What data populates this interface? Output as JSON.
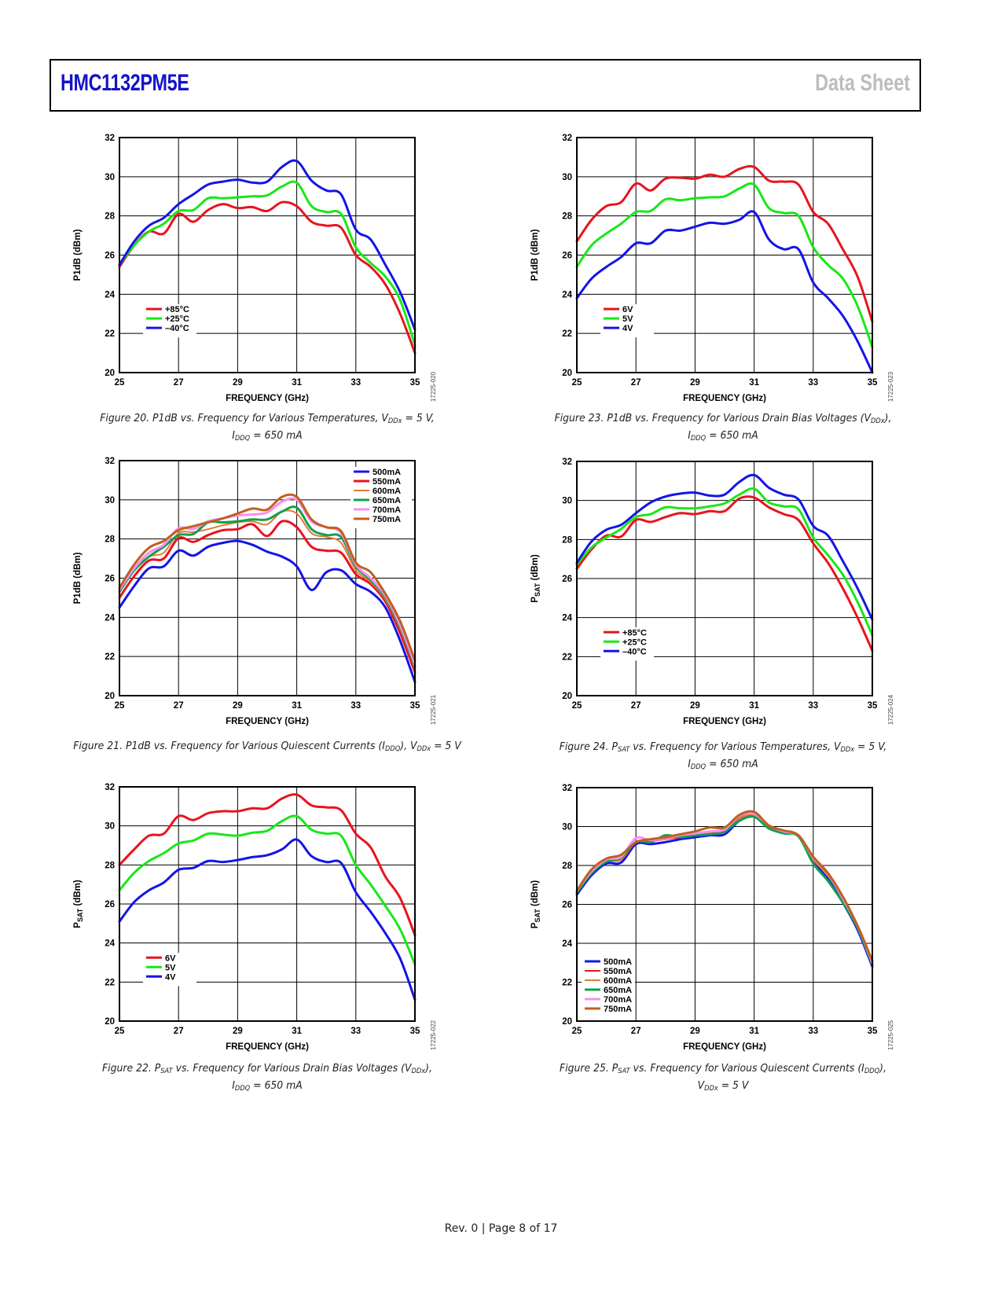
{
  "header": {
    "part_number": "HMC1132PM5E",
    "doc_type": "Data Sheet"
  },
  "footer": {
    "text": "Rev. 0 | Page 8 of 17"
  },
  "figures": [
    {
      "id": "fig20",
      "caption_html": "Figure 20. P1dB vs. Frequency for Various Temperatures, V<sub>DDx</sub> = 5 V,<br>I<sub>DDQ</sub> = 650 mA",
      "code": "17225-020"
    },
    {
      "id": "fig21",
      "caption_html": "Figure 21. P1dB vs. Frequency for Various Quiescent Currents (I<sub>DDQ</sub>), V<sub>DDx</sub> = 5 V",
      "code": "17225-021"
    },
    {
      "id": "fig22",
      "caption_html": "Figure 22. P<sub>SAT</sub> vs. Frequency for Various Drain Bias Voltages (V<sub>DDx</sub>),<br>I<sub>DDQ</sub> = 650 mA",
      "code": "17225-022"
    },
    {
      "id": "fig23",
      "caption_html": "Figure 23. P1dB vs. Frequency for Various Drain Bias Voltages (V<sub>DDx</sub>),<br>I<sub>DDQ</sub> = 650 mA",
      "code": "17225-023"
    },
    {
      "id": "fig24",
      "caption_html": "Figure 24. P<sub>SAT</sub> vs. Frequency for Various Temperatures, V<sub>DDx</sub> = 5 V,<br>I<sub>DDQ</sub> = 650 mA",
      "code": "17225-024"
    },
    {
      "id": "fig25",
      "caption_html": "Figure 25. P<sub>SAT</sub> vs. Frequency for Various Quiescent Currents (I<sub>DDQ</sub>),<br>V<sub>DDx</sub> = 5 V",
      "code": "17225-025"
    }
  ],
  "chart_data": [
    {
      "id": "fig20",
      "type": "line",
      "xlabel": "FREQUENCY (GHz)",
      "ylabel": "P1dB (dBm)",
      "ylabel_sub": "",
      "xlim": [
        25,
        35
      ],
      "ylim": [
        20,
        32
      ],
      "xticks": [
        25,
        27,
        29,
        31,
        33,
        35
      ],
      "yticks": [
        20,
        22,
        24,
        26,
        28,
        30,
        32
      ],
      "grid": true,
      "legend_position": "bottom-left",
      "x": [
        25,
        25.5,
        26,
        26.5,
        27,
        27.5,
        28,
        28.5,
        29,
        29.5,
        30,
        30.5,
        31,
        31.5,
        32,
        32.5,
        33,
        33.5,
        34,
        34.5,
        35
      ],
      "series": [
        {
          "name": "+85°C",
          "color": "#e8141e",
          "width": 3,
          "values": [
            25.4,
            26.5,
            27.2,
            27.1,
            28.1,
            27.7,
            28.3,
            28.6,
            28.4,
            28.45,
            28.25,
            28.7,
            28.5,
            27.7,
            27.5,
            27.4,
            26.0,
            25.4,
            24.5,
            23.0,
            21.0
          ]
        },
        {
          "name": "+25°C",
          "color": "#18e818",
          "width": 3,
          "values": [
            25.5,
            26.5,
            27.2,
            27.6,
            28.25,
            28.3,
            28.9,
            28.9,
            28.95,
            29.0,
            29.05,
            29.5,
            29.7,
            28.5,
            28.2,
            28.1,
            26.4,
            25.6,
            24.9,
            23.7,
            21.4
          ]
        },
        {
          "name": "–40°C",
          "color": "#1414e8",
          "width": 3,
          "values": [
            25.5,
            26.7,
            27.5,
            27.9,
            28.6,
            29.1,
            29.6,
            29.75,
            29.85,
            29.7,
            29.75,
            30.5,
            30.8,
            29.8,
            29.3,
            29.1,
            27.3,
            26.8,
            25.5,
            24.1,
            22.2
          ]
        }
      ]
    },
    {
      "id": "fig21",
      "type": "line",
      "xlabel": "FREQUENCY (GHz)",
      "ylabel": "P1dB (dBm)",
      "ylabel_sub": "",
      "xlim": [
        25,
        35
      ],
      "ylim": [
        20,
        32
      ],
      "xticks": [
        25,
        27,
        29,
        31,
        33,
        35
      ],
      "yticks": [
        20,
        22,
        24,
        26,
        28,
        30,
        32
      ],
      "grid": true,
      "legend_position": "top-right",
      "x": [
        25,
        25.5,
        26,
        26.5,
        27,
        27.5,
        28,
        28.5,
        29,
        29.5,
        30,
        30.5,
        31,
        31.5,
        32,
        32.5,
        33,
        33.5,
        34,
        34.5,
        35
      ],
      "series": [
        {
          "name": "500mA",
          "color": "#1414e8",
          "width": 3,
          "values": [
            24.5,
            25.6,
            26.5,
            26.6,
            27.4,
            27.15,
            27.6,
            27.8,
            27.9,
            27.7,
            27.35,
            27.1,
            26.6,
            25.4,
            26.3,
            26.4,
            25.7,
            25.3,
            24.5,
            22.8,
            20.7
          ]
        },
        {
          "name": "550mA",
          "color": "#e8141e",
          "width": 3,
          "values": [
            25.0,
            26.1,
            26.9,
            27.0,
            28.05,
            27.85,
            28.2,
            28.45,
            28.5,
            28.75,
            28.15,
            28.9,
            28.6,
            27.6,
            27.4,
            27.3,
            26.2,
            25.7,
            24.8,
            23.2,
            21.2
          ]
        },
        {
          "name": "600mA",
          "color": "#e87830",
          "width": 2,
          "values": [
            25.3,
            26.4,
            27.1,
            27.3,
            28.3,
            28.35,
            28.5,
            28.7,
            28.85,
            28.9,
            28.75,
            29.4,
            29.3,
            28.3,
            28.1,
            27.8,
            26.4,
            25.8,
            24.9,
            23.4,
            21.4
          ]
        },
        {
          "name": "650mA",
          "color": "#10a050",
          "width": 3,
          "values": [
            25.3,
            26.4,
            27.1,
            27.6,
            28.2,
            28.25,
            28.85,
            28.85,
            28.9,
            29.0,
            29.0,
            29.4,
            29.6,
            28.5,
            28.2,
            28.1,
            26.6,
            25.9,
            25.0,
            23.5,
            21.5
          ]
        },
        {
          "name": "700mA",
          "color": "#f890f0",
          "width": 3,
          "values": [
            25.4,
            26.5,
            27.3,
            27.7,
            28.55,
            28.5,
            28.9,
            29.05,
            29.2,
            29.25,
            29.35,
            29.9,
            30.0,
            28.9,
            28.6,
            28.3,
            26.7,
            26.0,
            25.1,
            23.6,
            21.6
          ]
        },
        {
          "name": "750mA",
          "color": "#c06020",
          "width": 3,
          "values": [
            25.5,
            26.7,
            27.55,
            27.9,
            28.45,
            28.65,
            28.85,
            29.05,
            29.3,
            29.55,
            29.5,
            30.15,
            30.15,
            29.0,
            28.6,
            28.4,
            26.8,
            26.3,
            25.2,
            23.8,
            21.8
          ]
        }
      ]
    },
    {
      "id": "fig22",
      "type": "line",
      "xlabel": "FREQUENCY (GHz)",
      "ylabel": "P",
      "ylabel_sub": "SAT",
      "xlim": [
        25,
        35
      ],
      "ylim": [
        20,
        32
      ],
      "xticks": [
        25,
        27,
        29,
        31,
        33,
        35
      ],
      "yticks": [
        20,
        22,
        24,
        26,
        28,
        30,
        32
      ],
      "grid": true,
      "legend_position": "bottom-left",
      "x": [
        25,
        25.5,
        26,
        26.5,
        27,
        27.5,
        28,
        28.5,
        29,
        29.5,
        30,
        30.5,
        31,
        31.5,
        32,
        32.5,
        33,
        33.5,
        34,
        34.5,
        35
      ],
      "series": [
        {
          "name": "6V",
          "color": "#e8141e",
          "width": 3,
          "values": [
            28.0,
            28.8,
            29.5,
            29.6,
            30.5,
            30.3,
            30.65,
            30.75,
            30.75,
            30.9,
            30.9,
            31.4,
            31.6,
            31.05,
            30.95,
            30.8,
            29.6,
            28.9,
            27.4,
            26.3,
            24.4
          ]
        },
        {
          "name": "5V",
          "color": "#18e818",
          "width": 3,
          "values": [
            26.7,
            27.6,
            28.2,
            28.6,
            29.1,
            29.25,
            29.6,
            29.55,
            29.5,
            29.65,
            29.75,
            30.25,
            30.5,
            29.8,
            29.6,
            29.5,
            28.0,
            27.0,
            25.9,
            24.7,
            22.9
          ]
        },
        {
          "name": "4V",
          "color": "#1414e8",
          "width": 3,
          "values": [
            25.1,
            26.1,
            26.7,
            27.1,
            27.75,
            27.85,
            28.2,
            28.15,
            28.25,
            28.4,
            28.5,
            28.8,
            29.3,
            28.45,
            28.15,
            28.1,
            26.6,
            25.6,
            24.5,
            23.2,
            21.1
          ]
        }
      ]
    },
    {
      "id": "fig23",
      "type": "line",
      "xlabel": "FREQUENCY (GHz)",
      "ylabel": "P1dB (dBm)",
      "ylabel_sub": "",
      "xlim": [
        25,
        35
      ],
      "ylim": [
        20,
        32
      ],
      "xticks": [
        25,
        27,
        29,
        31,
        33,
        35
      ],
      "yticks": [
        20,
        22,
        24,
        26,
        28,
        30,
        32
      ],
      "grid": true,
      "legend_position": "bottom-left",
      "x": [
        25,
        25.5,
        26,
        26.5,
        27,
        27.5,
        28,
        28.5,
        29,
        29.5,
        30,
        30.5,
        31,
        31.5,
        32,
        32.5,
        33,
        33.5,
        34,
        34.5,
        35
      ],
      "series": [
        {
          "name": "6V",
          "color": "#e8141e",
          "width": 3,
          "values": [
            26.7,
            27.8,
            28.5,
            28.7,
            29.65,
            29.3,
            29.9,
            29.95,
            29.9,
            30.1,
            30.0,
            30.4,
            30.5,
            29.8,
            29.75,
            29.6,
            28.2,
            27.6,
            26.3,
            24.9,
            22.6
          ]
        },
        {
          "name": "5V",
          "color": "#18e818",
          "width": 3,
          "values": [
            25.4,
            26.5,
            27.1,
            27.6,
            28.2,
            28.25,
            28.85,
            28.8,
            28.9,
            28.95,
            29.0,
            29.4,
            29.6,
            28.4,
            28.15,
            28.0,
            26.4,
            25.5,
            24.8,
            23.4,
            21.3
          ]
        },
        {
          "name": "4V",
          "color": "#1414e8",
          "width": 3,
          "values": [
            23.8,
            24.8,
            25.4,
            25.9,
            26.6,
            26.6,
            27.25,
            27.25,
            27.45,
            27.65,
            27.6,
            27.8,
            28.2,
            26.8,
            26.3,
            26.3,
            24.6,
            23.8,
            22.9,
            21.6,
            20.0
          ]
        }
      ]
    },
    {
      "id": "fig24",
      "type": "line",
      "xlabel": "FREQUENCY (GHz)",
      "ylabel": "P",
      "ylabel_sub": "SAT",
      "xlim": [
        25,
        35
      ],
      "ylim": [
        20,
        32
      ],
      "xticks": [
        25,
        27,
        29,
        31,
        33,
        35
      ],
      "yticks": [
        20,
        22,
        24,
        26,
        28,
        30,
        32
      ],
      "grid": true,
      "legend_position": "bottom-left",
      "x": [
        25,
        25.5,
        26,
        26.5,
        27,
        27.5,
        28,
        28.5,
        29,
        29.5,
        30,
        30.5,
        31,
        31.5,
        32,
        32.5,
        33,
        33.5,
        34,
        34.5,
        35
      ],
      "series": [
        {
          "name": "+85°C",
          "color": "#e8141e",
          "width": 3,
          "values": [
            26.5,
            27.5,
            28.2,
            28.15,
            29.0,
            28.9,
            29.15,
            29.35,
            29.3,
            29.45,
            29.45,
            30.1,
            30.15,
            29.65,
            29.3,
            29.0,
            27.8,
            26.8,
            25.5,
            24.0,
            22.3
          ]
        },
        {
          "name": "+25°C",
          "color": "#18e818",
          "width": 3,
          "values": [
            26.7,
            27.6,
            28.1,
            28.55,
            29.15,
            29.3,
            29.65,
            29.6,
            29.6,
            29.7,
            29.85,
            30.3,
            30.6,
            29.9,
            29.7,
            29.55,
            28.1,
            27.2,
            26.2,
            24.8,
            23.1
          ]
        },
        {
          "name": "–40°C",
          "color": "#1414e8",
          "width": 3,
          "values": [
            26.8,
            27.9,
            28.5,
            28.75,
            29.35,
            29.9,
            30.2,
            30.35,
            30.4,
            30.25,
            30.3,
            30.95,
            31.3,
            30.65,
            30.3,
            30.05,
            28.7,
            28.2,
            26.9,
            25.5,
            23.9
          ]
        }
      ]
    },
    {
      "id": "fig25",
      "type": "line",
      "xlabel": "FREQUENCY (GHz)",
      "ylabel": "P",
      "ylabel_sub": "SAT",
      "xlim": [
        25,
        35
      ],
      "ylim": [
        20,
        32
      ],
      "xticks": [
        25,
        27,
        29,
        31,
        33,
        35
      ],
      "yticks": [
        20,
        22,
        24,
        26,
        28,
        30,
        32
      ],
      "grid": true,
      "legend_position": "bottom-left",
      "x": [
        25,
        25.5,
        26,
        26.5,
        27,
        27.5,
        28,
        28.5,
        29,
        29.5,
        30,
        30.5,
        31,
        31.5,
        32,
        32.5,
        33,
        33.5,
        34,
        34.5,
        35
      ],
      "series": [
        {
          "name": "500mA",
          "color": "#1414e8",
          "width": 3,
          "values": [
            26.5,
            27.5,
            28.1,
            28.15,
            29.1,
            29.1,
            29.2,
            29.35,
            29.45,
            29.55,
            29.6,
            30.3,
            30.55,
            29.95,
            29.7,
            29.5,
            28.2,
            27.3,
            26.1,
            24.7,
            22.8
          ]
        },
        {
          "name": "550mA",
          "color": "#e8141e",
          "width": 2,
          "values": [
            26.6,
            27.6,
            28.2,
            28.3,
            29.2,
            29.25,
            29.35,
            29.45,
            29.55,
            29.7,
            29.8,
            30.5,
            30.65,
            30.0,
            29.75,
            29.55,
            28.3,
            27.5,
            26.3,
            24.8,
            22.9
          ]
        },
        {
          "name": "600mA",
          "color": "#e87830",
          "width": 2,
          "values": [
            26.6,
            27.6,
            28.2,
            28.3,
            29.2,
            29.3,
            29.35,
            29.5,
            29.6,
            29.65,
            29.7,
            30.4,
            30.6,
            30.0,
            29.75,
            29.55,
            28.3,
            27.5,
            26.3,
            24.8,
            22.9
          ]
        },
        {
          "name": "650mA",
          "color": "#10a050",
          "width": 3,
          "values": [
            26.6,
            27.6,
            28.2,
            28.4,
            29.2,
            29.2,
            29.55,
            29.45,
            29.55,
            29.6,
            29.75,
            30.3,
            30.5,
            29.9,
            29.65,
            29.5,
            28.1,
            27.2,
            26.1,
            24.8,
            22.9
          ]
        },
        {
          "name": "700mA",
          "color": "#f890f0",
          "width": 3,
          "values": [
            26.7,
            27.7,
            28.3,
            28.45,
            29.4,
            29.3,
            29.4,
            29.55,
            29.65,
            29.75,
            29.85,
            30.55,
            30.65,
            30.05,
            29.75,
            29.55,
            28.4,
            27.6,
            26.3,
            24.9,
            23.0
          ]
        },
        {
          "name": "750mA",
          "color": "#c06020",
          "width": 3,
          "values": [
            26.7,
            27.8,
            28.35,
            28.55,
            29.2,
            29.35,
            29.45,
            29.6,
            29.75,
            29.95,
            29.95,
            30.6,
            30.75,
            30.05,
            29.8,
            29.55,
            28.45,
            27.6,
            26.4,
            24.9,
            23.1
          ]
        }
      ]
    }
  ]
}
